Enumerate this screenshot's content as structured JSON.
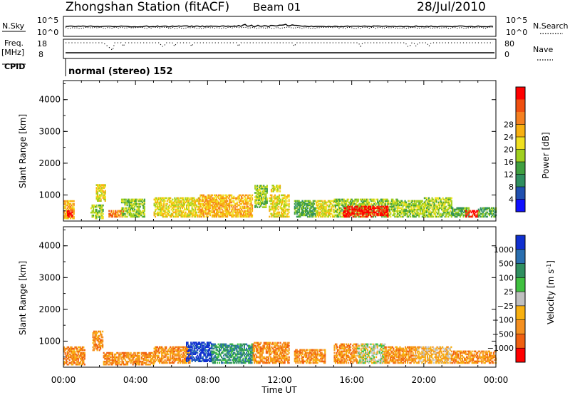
{
  "header": {
    "title": "Zhongshan Station (fitACF)",
    "beam": "Beam 01",
    "date": "28/Jul/2010"
  },
  "top_panels": {
    "nsky": {
      "label": "N.Sky",
      "tick_top": "10^5",
      "tick_bottom": "10^0",
      "right_label": "N.Search",
      "right_tick_top": "10^5",
      "right_tick_bottom": "10^0"
    },
    "freq": {
      "label_1": "Freq.",
      "label_2": "[MHz]",
      "tick_top": "18",
      "tick_bottom": "8",
      "right_label": "Nave",
      "right_tick_top": "80",
      "right_tick_bottom": "0"
    },
    "cpid": {
      "label": "CPID",
      "text": "normal (stereo) 152"
    }
  },
  "chart_data": [
    {
      "type": "heatmap",
      "name": "power",
      "ylabel": "Slant Range [km]",
      "y_ticks": [
        "1000",
        "2000",
        "3000",
        "4000"
      ],
      "ylim": [
        180,
        4600
      ],
      "colorbar": {
        "label": "Power [dB]",
        "ticks": [
          "4",
          "8",
          "12",
          "16",
          "20",
          "24",
          "28"
        ],
        "colors": [
          "#1010ff",
          "#2050b0",
          "#2f8f60",
          "#40a040",
          "#a0d020",
          "#f0e020",
          "#f8b010",
          "#f58020",
          "#f05010",
          "#ff0000"
        ]
      },
      "regions": [
        {
          "t0": 0.0,
          "t1": 0.6,
          "r0": 250,
          "r1": 800,
          "level": 6
        },
        {
          "t0": 0.2,
          "t1": 0.5,
          "r0": 300,
          "r1": 500,
          "level": 9
        },
        {
          "t0": 1.5,
          "t1": 2.2,
          "r0": 250,
          "r1": 700,
          "level": 4
        },
        {
          "t0": 1.8,
          "t1": 2.3,
          "r0": 800,
          "r1": 1300,
          "level": 5
        },
        {
          "t0": 2.5,
          "t1": 3.3,
          "r0": 300,
          "r1": 500,
          "level": 7
        },
        {
          "t0": 3.2,
          "t1": 4.5,
          "r0": 300,
          "r1": 850,
          "level": 4
        },
        {
          "t0": 5.0,
          "t1": 7.5,
          "r0": 300,
          "r1": 900,
          "level": 5
        },
        {
          "t0": 7.5,
          "t1": 10.5,
          "r0": 300,
          "r1": 1000,
          "level": 6
        },
        {
          "t0": 10.6,
          "t1": 11.3,
          "r0": 600,
          "r1": 1300,
          "level": 4
        },
        {
          "t0": 11.4,
          "t1": 12.5,
          "r0": 300,
          "r1": 1000,
          "level": 5
        },
        {
          "t0": 11.5,
          "t1": 12.0,
          "r0": 1100,
          "r1": 1300,
          "level": 5
        },
        {
          "t0": 12.8,
          "t1": 14.0,
          "r0": 300,
          "r1": 800,
          "level": 3
        },
        {
          "t0": 14.0,
          "t1": 15.0,
          "r0": 300,
          "r1": 800,
          "level": 5
        },
        {
          "t0": 15.0,
          "t1": 18.5,
          "r0": 300,
          "r1": 850,
          "level": 4
        },
        {
          "t0": 15.5,
          "t1": 18.0,
          "r0": 300,
          "r1": 650,
          "level": 9
        },
        {
          "t0": 18.5,
          "t1": 20.0,
          "r0": 300,
          "r1": 800,
          "level": 4
        },
        {
          "t0": 20.0,
          "t1": 21.5,
          "r0": 300,
          "r1": 900,
          "level": 4
        },
        {
          "t0": 21.5,
          "t1": 22.5,
          "r0": 300,
          "r1": 600,
          "level": 3
        },
        {
          "t0": 22.3,
          "t1": 23.0,
          "r0": 300,
          "r1": 500,
          "level": 9
        },
        {
          "t0": 23.0,
          "t1": 24.0,
          "r0": 300,
          "r1": 600,
          "level": 3
        }
      ]
    },
    {
      "type": "heatmap",
      "name": "velocity",
      "ylabel": "Slant Range [km]",
      "xlabel": "Time UT",
      "x_ticks": [
        "00:00",
        "04:00",
        "08:00",
        "12:00",
        "16:00",
        "20:00",
        "00:00"
      ],
      "y_ticks": [
        "1000",
        "2000",
        "3000",
        "4000"
      ],
      "ylim": [
        180,
        4600
      ],
      "xlim": [
        0,
        24
      ],
      "colorbar": {
        "label": "Velocity [m s",
        "label_sup": "-1",
        "label_end": "]",
        "ticks": [
          "1000",
          "500",
          "100",
          "25",
          "−25",
          "−100",
          "−500",
          "−1000"
        ],
        "colors": [
          "#1030d0",
          "#2a6fb0",
          "#2f8f60",
          "#40c040",
          "#c0c0c0",
          "#f8b010",
          "#f59020",
          "#f06010",
          "#ff0000"
        ]
      },
      "regions": [
        {
          "t0": 0.0,
          "t1": 1.2,
          "r0": 250,
          "r1": 800,
          "level": 6
        },
        {
          "t0": 1.6,
          "t1": 2.2,
          "r0": 700,
          "r1": 1300,
          "level": 6
        },
        {
          "t0": 2.2,
          "t1": 5.0,
          "r0": 250,
          "r1": 650,
          "level": 6
        },
        {
          "t0": 5.0,
          "t1": 7.0,
          "r0": 300,
          "r1": 800,
          "level": 6
        },
        {
          "t0": 6.8,
          "t1": 8.2,
          "r0": 350,
          "r1": 950,
          "level": 0
        },
        {
          "t0": 8.2,
          "t1": 10.5,
          "r0": 300,
          "r1": 900,
          "level": 2
        },
        {
          "t0": 10.5,
          "t1": 12.5,
          "r0": 300,
          "r1": 950,
          "level": 6
        },
        {
          "t0": 12.8,
          "t1": 14.5,
          "r0": 300,
          "r1": 750,
          "level": 6
        },
        {
          "t0": 15.0,
          "t1": 16.3,
          "r0": 300,
          "r1": 900,
          "level": 6
        },
        {
          "t0": 16.3,
          "t1": 17.8,
          "r0": 300,
          "r1": 900,
          "level": 4
        },
        {
          "t0": 17.8,
          "t1": 19.5,
          "r0": 300,
          "r1": 800,
          "level": 6
        },
        {
          "t0": 19.5,
          "t1": 21.5,
          "r0": 300,
          "r1": 800,
          "level": 5
        },
        {
          "t0": 21.5,
          "t1": 24.0,
          "r0": 300,
          "r1": 700,
          "level": 6
        }
      ]
    }
  ]
}
